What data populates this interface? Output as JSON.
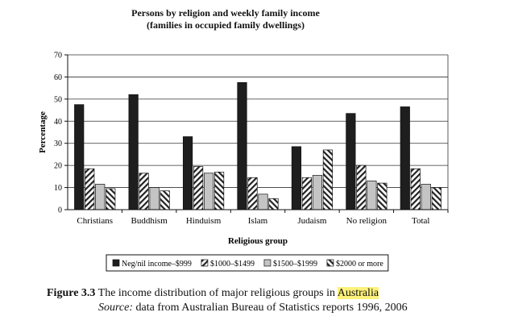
{
  "chart_data": {
    "type": "bar",
    "title": "Persons by religion and weekly family income",
    "subtitle": "(families in occupied family dwellings)",
    "xlabel": "Religious group",
    "ylabel": "Percentage",
    "ylim": [
      0,
      70
    ],
    "yticks": [
      0,
      10,
      20,
      30,
      40,
      50,
      60,
      70
    ],
    "grid": true,
    "legend_position": "bottom",
    "categories": [
      "Christians",
      "Buddhism",
      "Hinduism",
      "Islam",
      "Judaism",
      "No religion",
      "Total"
    ],
    "series": [
      {
        "name": "Neg/nil income–$999",
        "fill": "solid-dark",
        "values": [
          47.5,
          52,
          33,
          57.5,
          28.5,
          43.5,
          46.5
        ]
      },
      {
        "name": "$1000–$1499",
        "fill": "hatch-forward",
        "values": [
          18.5,
          16.5,
          19.5,
          14.5,
          14.5,
          20,
          18.5
        ]
      },
      {
        "name": "$1500–$1999",
        "fill": "solid-light",
        "values": [
          11.5,
          10,
          16.5,
          7,
          15.5,
          13,
          11.5
        ]
      },
      {
        "name": "$2000 or more",
        "fill": "hatch-back",
        "values": [
          9.5,
          8.5,
          17,
          5,
          27,
          12,
          10
        ]
      }
    ],
    "colors": {
      "dark": "#1e1e1e",
      "light": "#c4c4c4",
      "hatch": "#222222"
    }
  },
  "caption": {
    "label": "Figure 3.3",
    "text": "The income distribution of major religious groups in",
    "highlight": "Australia"
  },
  "source": {
    "label": "Source:",
    "text": "data from Australian Bureau of Statistics reports 1996, 2006"
  }
}
